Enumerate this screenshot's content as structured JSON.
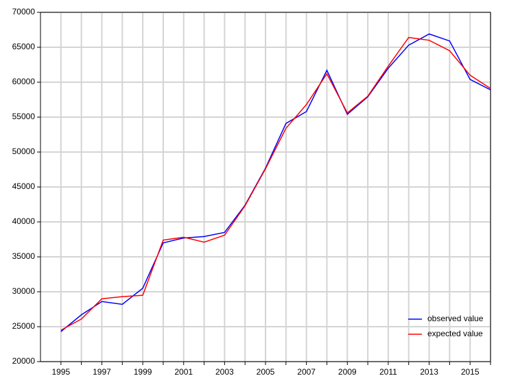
{
  "chart_data": {
    "type": "line",
    "x": [
      1995,
      1996,
      1997,
      1998,
      1999,
      2000,
      2001,
      2002,
      2003,
      2004,
      2005,
      2006,
      2007,
      2008,
      2009,
      2010,
      2011,
      2012,
      2013,
      2014,
      2015,
      2016
    ],
    "series": [
      {
        "name": "observed value",
        "color": "#0000ff",
        "values": [
          24300,
          26700,
          28600,
          28200,
          30500,
          37000,
          37700,
          37900,
          38500,
          42400,
          47700,
          54100,
          55800,
          61700,
          55400,
          57900,
          62000,
          65300,
          66900,
          65900,
          60400,
          58900
        ]
      },
      {
        "name": "expected value",
        "color": "#ff0000",
        "values": [
          24500,
          26100,
          29000,
          29300,
          29500,
          37400,
          37800,
          37100,
          38100,
          42300,
          47600,
          53400,
          56800,
          61200,
          55600,
          58000,
          62300,
          66400,
          66000,
          64500,
          61000,
          59100
        ]
      }
    ],
    "xlim": [
      1994,
      2016
    ],
    "xticks": [
      1995,
      1997,
      1999,
      2001,
      2003,
      2005,
      2007,
      2009,
      2011,
      2013,
      2015
    ],
    "x_minor_ticks": [
      1996,
      1998,
      2000,
      2002,
      2004,
      2006,
      2008,
      2010,
      2012,
      2014,
      2016
    ],
    "ylim": [
      20000,
      70000
    ],
    "yticks": [
      20000,
      25000,
      30000,
      35000,
      40000,
      45000,
      50000,
      55000,
      60000,
      65000,
      70000
    ],
    "grid": true,
    "legend": "lower right"
  }
}
